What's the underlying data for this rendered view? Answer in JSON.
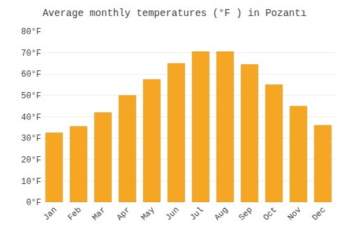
{
  "chart_data": {
    "type": "bar",
    "title": "Average monthly temperatures (°F ) in Pozantı",
    "categories": [
      "Jan",
      "Feb",
      "Mar",
      "Apr",
      "May",
      "Jun",
      "Jul",
      "Aug",
      "Sep",
      "Oct",
      "Nov",
      "Dec"
    ],
    "values": [
      32.5,
      35.5,
      42.0,
      50.0,
      57.5,
      65.0,
      70.5,
      70.5,
      64.5,
      55.0,
      45.0,
      36.0
    ],
    "color": "#F5A623",
    "ylim": [
      0,
      80
    ],
    "yticks": [
      {
        "value": 0,
        "label": "0°F"
      },
      {
        "value": 10,
        "label": "10°F"
      },
      {
        "value": 20,
        "label": "20°F"
      },
      {
        "value": 30,
        "label": "30°F"
      },
      {
        "value": 40,
        "label": "40°F"
      },
      {
        "value": 50,
        "label": "50°F"
      },
      {
        "value": 60,
        "label": "60°F"
      },
      {
        "value": 70,
        "label": "70°F"
      },
      {
        "value": 80,
        "label": "80°F"
      }
    ],
    "grid": true
  }
}
